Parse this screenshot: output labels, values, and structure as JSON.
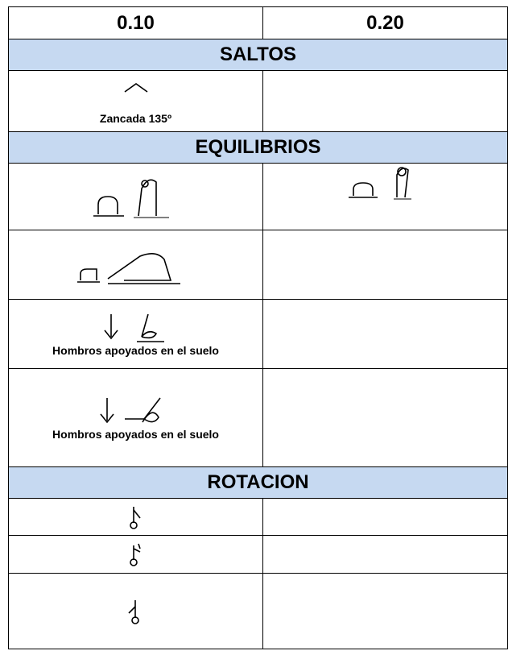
{
  "header": {
    "col1": "0.10",
    "col2": "0.20"
  },
  "sections": [
    {
      "title": "SALTOS",
      "captions": [
        "Zancada 135º"
      ]
    },
    {
      "title": "EQUILIBRIOS",
      "captions": [
        "Hombros apoyados en el suelo",
        "Hombros apoyados en el suelo"
      ]
    },
    {
      "title": "ROTACION"
    }
  ]
}
